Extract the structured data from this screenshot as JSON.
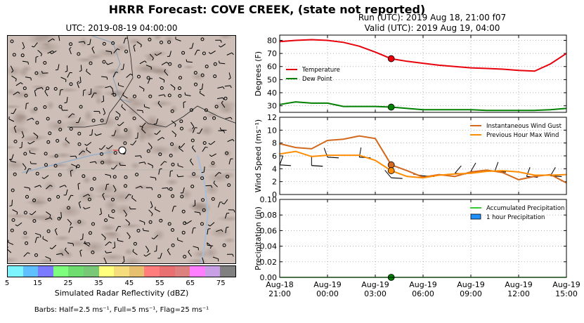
{
  "figure": {
    "suptitle": "HRRR Forecast: COVE CREEK, (state not reported)",
    "run_line": "Run (UTC): 2019 Aug 18, 21:00 f07",
    "valid_line": "Valid (UTC): 2019 Aug 19, 04:00"
  },
  "map": {
    "title": "UTC: 2019-08-19 04:00:00",
    "colorbar_label": "Simulated Radar Reflectivity (dBZ)",
    "colorbar_ticks": [
      "5",
      "15",
      "25",
      "35",
      "45",
      "55",
      "65",
      "75"
    ],
    "colorbar_colors": [
      "#7df5ff",
      "#5fbfff",
      "#7b7bff",
      "#7dff7d",
      "#6fdc6f",
      "#78c878",
      "#ffff7d",
      "#f5dc7d",
      "#e6c06e",
      "#ff7d7d",
      "#e87070",
      "#dc8080",
      "#ff7dff",
      "#c8a0e6",
      "#808080"
    ],
    "barb_note": "Barbs: Half=2.5 ms⁻¹, Full=5 ms⁻¹, Flag=25 ms⁻¹"
  },
  "chart_data": [
    {
      "type": "line",
      "ylabel": "Degrees (F)",
      "ylim": [
        25,
        84
      ],
      "yticks": [
        30,
        40,
        50,
        60,
        70,
        80
      ],
      "xlim": [
        0,
        18
      ],
      "xticks": [
        0,
        3,
        6,
        9,
        12,
        15,
        18
      ],
      "grid": true,
      "legend": "upper-left",
      "x": [
        0,
        1,
        2,
        3,
        4,
        5,
        6,
        7,
        8,
        9,
        10,
        11,
        12,
        13,
        14,
        15,
        16,
        17,
        18
      ],
      "series": [
        {
          "name": "Temperature",
          "color": "#e8000b",
          "values": [
            79,
            80,
            80.5,
            80,
            78.5,
            75.5,
            71,
            66,
            64,
            62.5,
            61,
            60,
            59,
            58.5,
            58,
            57,
            56.5,
            62,
            70
          ]
        },
        {
          "name": "Dew Point",
          "color": "#008000",
          "values": [
            31,
            33,
            32,
            32,
            29.5,
            29.5,
            29.5,
            29,
            28,
            27,
            27,
            27,
            27,
            26.5,
            26.5,
            26.5,
            26.5,
            27,
            28
          ]
        }
      ],
      "markers": [
        {
          "x": 7,
          "y": 66,
          "color": "#e8000b"
        },
        {
          "x": 7,
          "y": 29,
          "color": "#008000"
        }
      ]
    },
    {
      "type": "line",
      "ylabel": "Wind Speed (ms⁻¹)",
      "ylim": [
        0,
        12
      ],
      "yticks": [
        0,
        2,
        4,
        6,
        8,
        10,
        12
      ],
      "xlim": [
        0,
        18
      ],
      "xticks": [
        0,
        3,
        6,
        9,
        12,
        15,
        18
      ],
      "grid": true,
      "legend": "upper-right",
      "x": [
        0,
        1,
        2,
        3,
        4,
        5,
        6,
        7,
        8,
        9,
        10,
        11,
        12,
        13,
        14,
        15,
        16,
        17,
        18
      ],
      "series": [
        {
          "name": "Instantaneous Wind Gust",
          "color": "#d2691e",
          "values": [
            7.9,
            7.3,
            7.1,
            8.4,
            8.6,
            9.1,
            8.7,
            4.6,
            3.7,
            2.7,
            3.1,
            2.8,
            3.5,
            3.8,
            3.4,
            2.3,
            2.8,
            3.1,
            1.8
          ]
        },
        {
          "name": "Previous Hour Max Wind",
          "color": "#ff8c00",
          "values": [
            6.3,
            6.7,
            5.9,
            6.1,
            6.1,
            6.1,
            5.3,
            3.7,
            2.8,
            2.6,
            3.0,
            3.2,
            3.3,
            3.6,
            3.7,
            3.5,
            3.0,
            3.0,
            3.1
          ]
        }
      ],
      "markers": [
        {
          "x": 7,
          "y": 4.6,
          "color": "#d2691e"
        },
        {
          "x": 7,
          "y": 3.7,
          "color": "#ff8c00"
        }
      ]
    },
    {
      "type": "bar",
      "ylabel": "Precipitation (in)",
      "ylim": [
        0,
        0.1
      ],
      "yticks": [
        "0.00",
        "0.02",
        "0.04",
        "0.06",
        "0.08",
        "0.10"
      ],
      "xlim": [
        0,
        18
      ],
      "xticks": [
        0,
        3,
        6,
        9,
        12,
        15,
        18
      ],
      "xticklabels": [
        [
          "Aug-18",
          "21:00"
        ],
        [
          "Aug-19",
          "00:00"
        ],
        [
          "Aug-19",
          "03:00"
        ],
        [
          "Aug-19",
          "06:00"
        ],
        [
          "Aug-19",
          "09:00"
        ],
        [
          "Aug-19",
          "12:00"
        ],
        [
          "Aug-19",
          "15:00"
        ]
      ],
      "grid": true,
      "legend": "upper-right",
      "x": [
        0,
        1,
        2,
        3,
        4,
        5,
        6,
        7,
        8,
        9,
        10,
        11,
        12,
        13,
        14,
        15,
        16,
        17,
        18
      ],
      "series": [
        {
          "name": "Accumulated Precipitation",
          "color": "#32cd32",
          "values": [
            0,
            0,
            0,
            0,
            0,
            0,
            0,
            0,
            0,
            0,
            0,
            0,
            0,
            0,
            0,
            0,
            0,
            0,
            0
          ]
        },
        {
          "name": "1 hour Precipitation",
          "color": "#1e90ff",
          "values": [
            0,
            0,
            0,
            0,
            0,
            0,
            0,
            0,
            0,
            0,
            0,
            0,
            0,
            0,
            0,
            0,
            0,
            0,
            0
          ]
        }
      ],
      "markers": [
        {
          "x": 7,
          "y": 0,
          "color": "#008000"
        }
      ]
    }
  ]
}
